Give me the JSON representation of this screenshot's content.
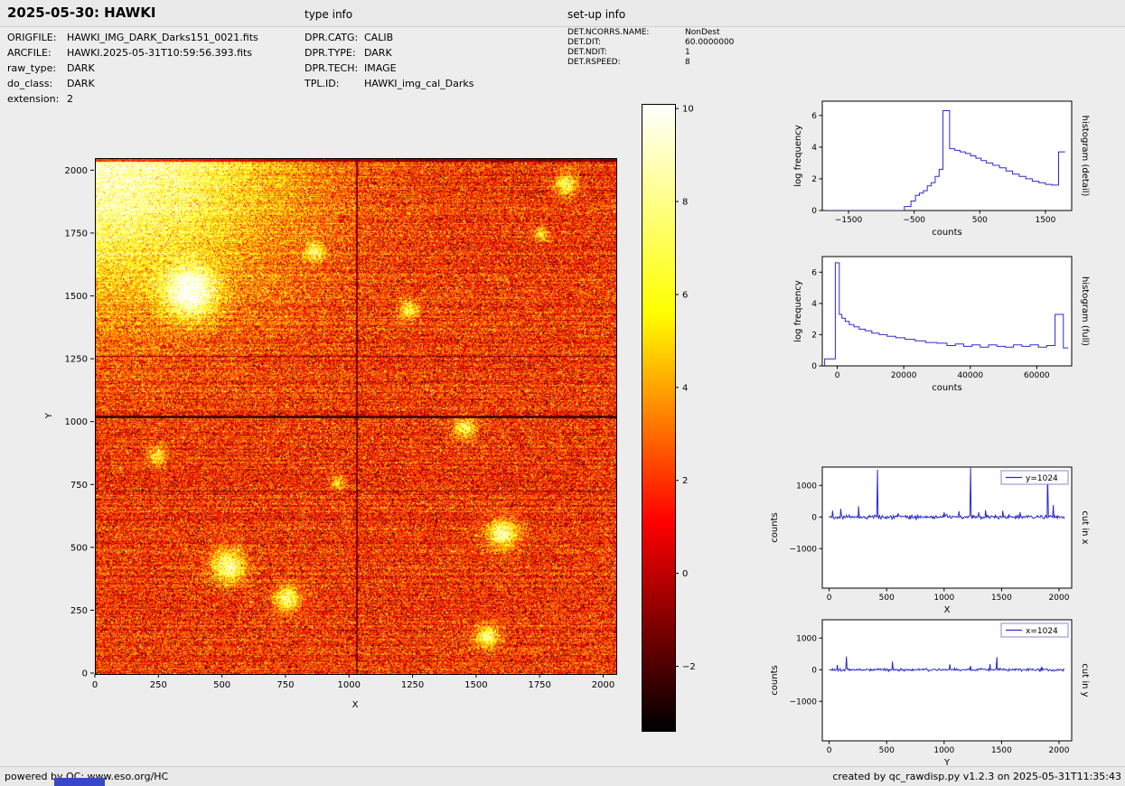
{
  "header": {
    "title": "2025-05-30: HAWKI",
    "type_info_label": "type info",
    "setup_info_label": "set-up info"
  },
  "metadata": {
    "file": [
      {
        "key": "ORIGFILE:",
        "value": "HAWKI_IMG_DARK_Darks151_0021.fits"
      },
      {
        "key": "ARCFILE:",
        "value": "HAWKI.2025-05-31T10:59:56.393.fits"
      },
      {
        "key": "raw_type:",
        "value": "DARK"
      },
      {
        "key": "do_class:",
        "value": "DARK"
      },
      {
        "key": "extension:",
        "value": "2"
      }
    ],
    "type_info": [
      {
        "key": "DPR.CATG:",
        "value": "CALIB"
      },
      {
        "key": "DPR.TYPE:",
        "value": "DARK"
      },
      {
        "key": "DPR.TECH:",
        "value": "IMAGE"
      },
      {
        "key": "TPL.ID:",
        "value": "HAWKI_img_cal_Darks"
      }
    ],
    "setup_info": [
      {
        "key": "DET.NCORRS.NAME:",
        "value": "NonDest"
      },
      {
        "key": "DET.DIT:",
        "value": "60.0000000"
      },
      {
        "key": "DET.NDIT:",
        "value": "1"
      },
      {
        "key": "DET.RSPEED:",
        "value": "8"
      }
    ]
  },
  "footer": {
    "left": "powered by QC: www.eso.org/HC",
    "right": "created by qc_rawdisp.py v1.2.3 on 2025-05-31T11:35:43"
  },
  "colors": {
    "line_blue": "#2b2bcd",
    "legend_edge": "#8a8acb",
    "footer_bar_blue": "#3a46c8",
    "page_bg": "#ededed"
  },
  "chart_data": [
    {
      "id": "detector_image",
      "type": "heatmap",
      "xlabel": "X",
      "ylabel": "Y",
      "xlim": [
        0,
        2048
      ],
      "ylim": [
        0,
        2048
      ],
      "xticks": [
        0,
        250,
        500,
        750,
        1000,
        1250,
        1500,
        1750,
        2000
      ],
      "yticks": [
        0,
        250,
        500,
        750,
        1000,
        1250,
        1500,
        1750,
        2000
      ],
      "colormap": "hot",
      "colorbar": {
        "vmin": -3.37,
        "vmax": 10.1,
        "ticks": [
          -2,
          0,
          2,
          4,
          6,
          8,
          10
        ]
      },
      "features": {
        "description": "noisy 2048x2048 dark frame, hot colormap, bright glow in top-left corner, dark quadrant boundary lines at x=1024 and y=1024, faint dark rows, scattered bright blobs",
        "quadrant_boundary_x": 1024,
        "quadrant_boundary_y": 1024,
        "dark_rows": [
          730,
          1265
        ],
        "bright_blobs": [
          [
            370,
            1520,
            28,
            0.55
          ],
          [
            520,
            430,
            18,
            0.5
          ],
          [
            750,
            300,
            14,
            0.45
          ],
          [
            1450,
            980,
            12,
            0.4
          ],
          [
            1600,
            560,
            16,
            0.5
          ],
          [
            1540,
            150,
            12,
            0.45
          ],
          [
            860,
            1680,
            10,
            0.4
          ],
          [
            1230,
            1450,
            10,
            0.35
          ],
          [
            240,
            870,
            10,
            0.35
          ],
          [
            1850,
            1950,
            12,
            0.4
          ],
          [
            950,
            760,
            8,
            0.3
          ],
          [
            1750,
            1750,
            8,
            0.3
          ]
        ]
      }
    },
    {
      "id": "histogram_detail",
      "type": "line",
      "right_label": "histogram (detail)",
      "xlabel": "counts",
      "ylabel": "log frequency",
      "xlim": [
        -1900,
        1900
      ],
      "ylim": [
        0,
        6.9
      ],
      "xticks": [
        -1500,
        -500,
        500,
        1500
      ],
      "yticks": [
        0,
        2,
        4,
        6
      ],
      "points": [
        [
          -1850,
          0
        ],
        [
          -650,
          0
        ],
        [
          -650,
          0.25
        ],
        [
          -550,
          0.25
        ],
        [
          -550,
          0.6
        ],
        [
          -480,
          0.6
        ],
        [
          -480,
          0.95
        ],
        [
          -420,
          0.95
        ],
        [
          -420,
          1.1
        ],
        [
          -360,
          1.1
        ],
        [
          -360,
          1.25
        ],
        [
          -300,
          1.25
        ],
        [
          -300,
          1.55
        ],
        [
          -240,
          1.55
        ],
        [
          -240,
          1.75
        ],
        [
          -180,
          1.75
        ],
        [
          -180,
          2.15
        ],
        [
          -120,
          2.15
        ],
        [
          -120,
          2.6
        ],
        [
          -60,
          2.6
        ],
        [
          -60,
          6.3
        ],
        [
          40,
          6.3
        ],
        [
          40,
          3.9
        ],
        [
          120,
          3.9
        ],
        [
          120,
          3.8
        ],
        [
          200,
          3.8
        ],
        [
          200,
          3.7
        ],
        [
          280,
          3.7
        ],
        [
          280,
          3.6
        ],
        [
          360,
          3.6
        ],
        [
          360,
          3.45
        ],
        [
          440,
          3.45
        ],
        [
          440,
          3.3
        ],
        [
          520,
          3.3
        ],
        [
          520,
          3.15
        ],
        [
          600,
          3.15
        ],
        [
          600,
          3.0
        ],
        [
          700,
          3.0
        ],
        [
          700,
          2.85
        ],
        [
          800,
          2.85
        ],
        [
          800,
          2.7
        ],
        [
          900,
          2.7
        ],
        [
          900,
          2.5
        ],
        [
          1000,
          2.5
        ],
        [
          1000,
          2.3
        ],
        [
          1100,
          2.3
        ],
        [
          1100,
          2.15
        ],
        [
          1200,
          2.15
        ],
        [
          1200,
          2.0
        ],
        [
          1300,
          2.0
        ],
        [
          1300,
          1.85
        ],
        [
          1400,
          1.85
        ],
        [
          1400,
          1.75
        ],
        [
          1500,
          1.75
        ],
        [
          1500,
          1.65
        ],
        [
          1600,
          1.65
        ],
        [
          1600,
          1.6
        ],
        [
          1700,
          1.6
        ],
        [
          1700,
          3.7
        ],
        [
          1800,
          3.7
        ]
      ]
    },
    {
      "id": "histogram_full",
      "type": "line",
      "right_label": "histogram (full)",
      "xlabel": "counts",
      "ylabel": "log frequency",
      "xlim": [
        -4500,
        70500
      ],
      "ylim": [
        0,
        7.0
      ],
      "xticks": [
        0,
        20000,
        40000,
        60000
      ],
      "yticks": [
        0,
        2,
        4,
        6
      ],
      "points": [
        [
          -3800,
          0
        ],
        [
          -3800,
          0.45
        ],
        [
          -600,
          0.45
        ],
        [
          -600,
          6.6
        ],
        [
          600,
          6.6
        ],
        [
          600,
          3.3
        ],
        [
          1400,
          3.3
        ],
        [
          1400,
          3.05
        ],
        [
          2400,
          3.05
        ],
        [
          2400,
          2.85
        ],
        [
          3600,
          2.85
        ],
        [
          3600,
          2.65
        ],
        [
          5000,
          2.65
        ],
        [
          5000,
          2.5
        ],
        [
          6600,
          2.5
        ],
        [
          6600,
          2.35
        ],
        [
          8400,
          2.35
        ],
        [
          8400,
          2.25
        ],
        [
          10400,
          2.25
        ],
        [
          10400,
          2.1
        ],
        [
          12600,
          2.1
        ],
        [
          12600,
          2.0
        ],
        [
          15000,
          2.0
        ],
        [
          15000,
          1.9
        ],
        [
          17600,
          1.9
        ],
        [
          17600,
          1.8
        ],
        [
          20400,
          1.8
        ],
        [
          20400,
          1.7
        ],
        [
          23400,
          1.7
        ],
        [
          23400,
          1.6
        ],
        [
          26600,
          1.6
        ],
        [
          26600,
          1.5
        ],
        [
          30000,
          1.5
        ],
        [
          30000,
          1.45
        ],
        [
          33000,
          1.45
        ],
        [
          33000,
          1.3
        ],
        [
          35500,
          1.3
        ],
        [
          35500,
          1.4
        ],
        [
          38000,
          1.4
        ],
        [
          38000,
          1.25
        ],
        [
          40500,
          1.25
        ],
        [
          40500,
          1.35
        ],
        [
          43000,
          1.35
        ],
        [
          43000,
          1.2
        ],
        [
          45500,
          1.2
        ],
        [
          45500,
          1.35
        ],
        [
          48000,
          1.35
        ],
        [
          48000,
          1.25
        ],
        [
          50500,
          1.25
        ],
        [
          50500,
          1.2
        ],
        [
          53000,
          1.2
        ],
        [
          53000,
          1.35
        ],
        [
          55500,
          1.35
        ],
        [
          55500,
          1.25
        ],
        [
          58000,
          1.25
        ],
        [
          58000,
          1.35
        ],
        [
          60500,
          1.35
        ],
        [
          60500,
          1.2
        ],
        [
          63000,
          1.2
        ],
        [
          63000,
          1.3
        ],
        [
          65500,
          1.3
        ],
        [
          65500,
          3.3
        ],
        [
          68000,
          3.3
        ],
        [
          68000,
          1.15
        ],
        [
          69500,
          1.15
        ]
      ]
    },
    {
      "id": "cut_x",
      "type": "line",
      "right_label": "cut in x",
      "xlabel": "X",
      "ylabel": "counts",
      "legend": "y=1024",
      "xlim": [
        -60,
        2110
      ],
      "ylim": [
        -2250,
        1580
      ],
      "xticks": [
        0,
        500,
        1000,
        1500,
        2000
      ],
      "yticks": [
        -1000,
        0,
        1000
      ],
      "noise_amplitude": 60,
      "spikes": [
        [
          30,
          200
        ],
        [
          100,
          260
        ],
        [
          255,
          340
        ],
        [
          420,
          1500
        ],
        [
          600,
          120
        ],
        [
          1000,
          150
        ],
        [
          1130,
          180
        ],
        [
          1230,
          1560
        ],
        [
          1300,
          150
        ],
        [
          1360,
          220
        ],
        [
          1510,
          200
        ],
        [
          1660,
          150
        ],
        [
          1900,
          1480
        ],
        [
          1950,
          380
        ]
      ]
    },
    {
      "id": "cut_y",
      "type": "line",
      "right_label": "cut in y",
      "xlabel": "Y",
      "ylabel": "counts",
      "legend": "x=1024",
      "xlim": [
        -60,
        2110
      ],
      "ylim": [
        -2250,
        1580
      ],
      "xticks": [
        0,
        500,
        1000,
        1500,
        2000
      ],
      "yticks": [
        -1000,
        0,
        1000
      ],
      "noise_amplitude": 40,
      "spikes": [
        [
          70,
          150
        ],
        [
          150,
          420
        ],
        [
          550,
          260
        ],
        [
          1050,
          170
        ],
        [
          1230,
          120
        ],
        [
          1400,
          180
        ],
        [
          1460,
          400
        ],
        [
          1850,
          100
        ]
      ]
    }
  ]
}
